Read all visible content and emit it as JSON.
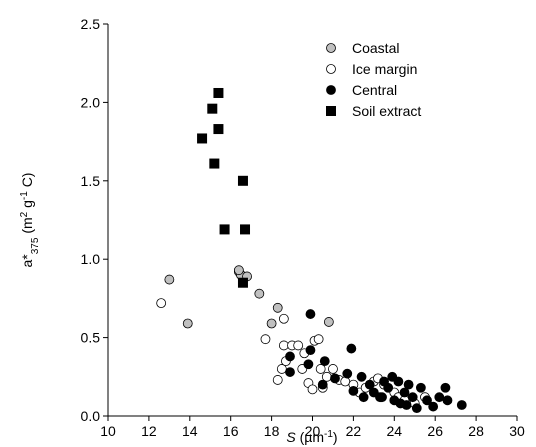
{
  "chart_data": {
    "type": "scatter",
    "xlabel_parts": [
      "S",
      " (µm",
      "-1",
      ")"
    ],
    "ylabel_parts": [
      "a*",
      "375",
      " (m",
      "2",
      " g",
      "-1",
      " C)"
    ],
    "xlim": [
      10,
      30
    ],
    "xticks": [
      10,
      12,
      14,
      16,
      18,
      20,
      22,
      24,
      26,
      28,
      30
    ],
    "ylim": [
      0,
      2.5
    ],
    "yticks": [
      {
        "value": 0,
        "label": "0.0"
      },
      0.5,
      {
        "value": 1,
        "label": "1.0"
      },
      1.5,
      {
        "value": 2,
        "label": "2.0"
      },
      2.5
    ],
    "legend": "upper right",
    "series": [
      {
        "name": "Coastal",
        "color": "#c0c0c0",
        "marker": "circle",
        "x": [
          13.0,
          13.9,
          16.4,
          16.5,
          16.8,
          17.4,
          18.0,
          18.3,
          20.8,
          16.4
        ],
        "values": [
          0.87,
          0.59,
          0.92,
          0.9,
          0.89,
          0.78,
          0.59,
          0.69,
          0.6,
          0.93
        ]
      },
      {
        "name": "Ice margin",
        "color": "#ffffff",
        "marker": "circle",
        "x": [
          12.6,
          17.7,
          18.6,
          18.3,
          18.5,
          18.6,
          19.0,
          19.3,
          19.6,
          19.8,
          20.0,
          20.1,
          20.3,
          20.4,
          20.5,
          20.7,
          21.0,
          21.3,
          21.6,
          22.0,
          22.3,
          22.6,
          23.0,
          23.2,
          23.5,
          24.0,
          24.2,
          24.5,
          25.0,
          25.5,
          18.7,
          19.5
        ],
        "values": [
          0.72,
          0.49,
          0.62,
          0.23,
          0.3,
          0.45,
          0.45,
          0.45,
          0.4,
          0.21,
          0.17,
          0.48,
          0.49,
          0.3,
          0.18,
          0.25,
          0.3,
          0.23,
          0.22,
          0.2,
          0.15,
          0.18,
          0.22,
          0.24,
          0.2,
          0.15,
          0.12,
          0.1,
          0.08,
          0.12,
          0.35,
          0.3
        ]
      },
      {
        "name": "Central",
        "color": "#000000",
        "marker": "circle",
        "x": [
          19.9,
          19.9,
          18.9,
          18.9,
          19.8,
          20.5,
          20.6,
          21.1,
          21.9,
          21.7,
          22.0,
          22.4,
          22.5,
          22.8,
          23.0,
          23.3,
          23.5,
          23.7,
          23.9,
          24.0,
          24.2,
          24.3,
          24.5,
          24.7,
          24.9,
          25.1,
          25.3,
          25.6,
          25.9,
          26.2,
          26.5,
          26.6,
          27.3,
          23.4,
          24.6
        ],
        "values": [
          0.65,
          0.42,
          0.28,
          0.38,
          0.33,
          0.2,
          0.35,
          0.24,
          0.43,
          0.27,
          0.16,
          0.25,
          0.12,
          0.2,
          0.15,
          0.12,
          0.22,
          0.18,
          0.25,
          0.1,
          0.22,
          0.08,
          0.15,
          0.2,
          0.12,
          0.05,
          0.18,
          0.1,
          0.06,
          0.12,
          0.18,
          0.1,
          0.07,
          0.12,
          0.07
        ]
      },
      {
        "name": "Soil extract",
        "color": "#000000",
        "marker": "square",
        "x": [
          14.6,
          15.1,
          15.4,
          15.2,
          15.4,
          15.7,
          16.6,
          16.7,
          16.6
        ],
        "values": [
          1.77,
          1.96,
          2.06,
          1.61,
          1.83,
          1.19,
          1.5,
          1.19,
          0.85
        ]
      }
    ]
  }
}
